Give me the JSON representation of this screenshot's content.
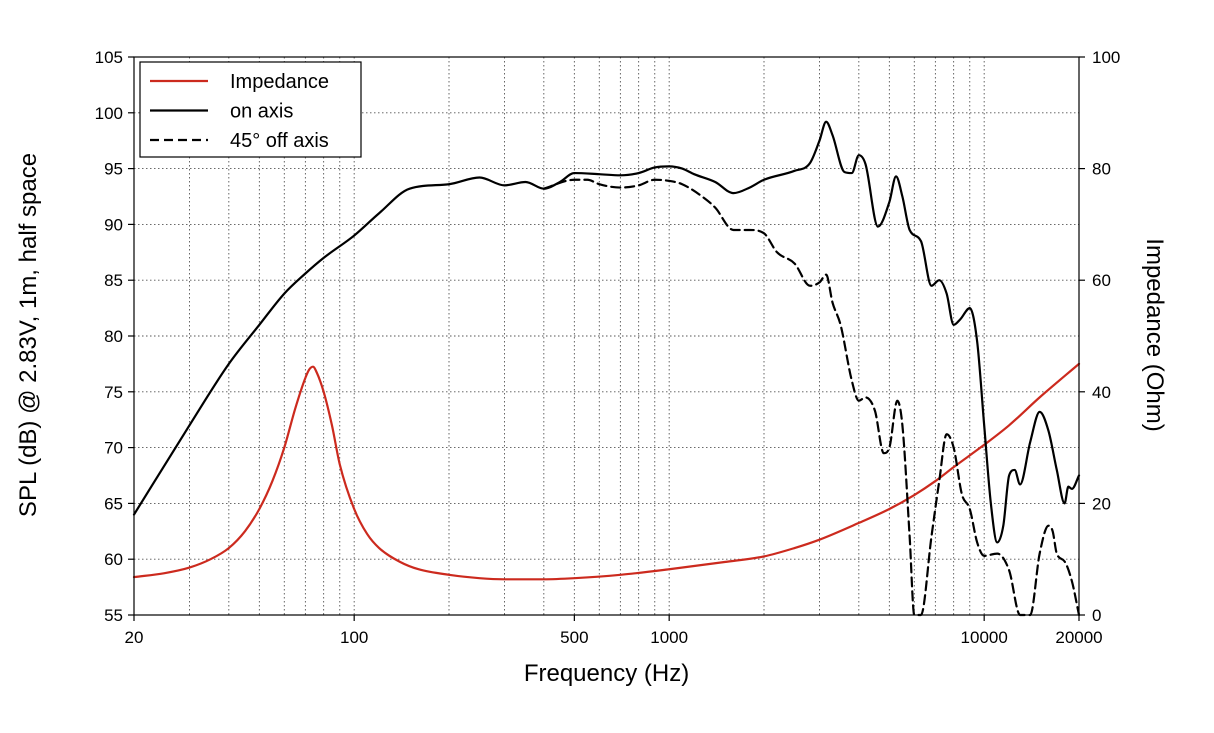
{
  "chart_data": {
    "type": "line",
    "x_scale": "log",
    "grid": true,
    "legend_position": "top-left",
    "xlabel": "Frequency (Hz)",
    "ylabel_left": "SPL (dB) @ 2.83V, 1m, half space",
    "ylabel_right": "Impedance (Ohm)",
    "xlim": [
      20,
      20000
    ],
    "ylim_left": [
      55,
      105
    ],
    "ylim_right": [
      0,
      100
    ],
    "x_tick_labels": [
      {
        "value": 20,
        "label": "20"
      },
      {
        "value": 100,
        "label": "100"
      },
      {
        "value": 500,
        "label": "500"
      },
      {
        "value": 1000,
        "label": "1000"
      },
      {
        "value": 10000,
        "label": "10000"
      },
      {
        "value": 20000,
        "label": "20000"
      }
    ],
    "y_left_ticks": [
      55,
      60,
      65,
      70,
      75,
      80,
      85,
      90,
      95,
      100,
      105
    ],
    "y_right_ticks": [
      0,
      20,
      40,
      60,
      80,
      100
    ],
    "series": [
      {
        "name": "Impedance",
        "axis": "right",
        "style": "solid",
        "color": "#cc2a1e",
        "points": [
          [
            20,
            6.8
          ],
          [
            25,
            7.5
          ],
          [
            30,
            8.5
          ],
          [
            35,
            10
          ],
          [
            40,
            12
          ],
          [
            45,
            15
          ],
          [
            50,
            19
          ],
          [
            55,
            24
          ],
          [
            60,
            30
          ],
          [
            65,
            37
          ],
          [
            70,
            42.5
          ],
          [
            72,
            44
          ],
          [
            74,
            44.5
          ],
          [
            76,
            43.5
          ],
          [
            80,
            40
          ],
          [
            85,
            34
          ],
          [
            90,
            27
          ],
          [
            100,
            19
          ],
          [
            110,
            14.5
          ],
          [
            120,
            12
          ],
          [
            140,
            9.5
          ],
          [
            160,
            8.2
          ],
          [
            200,
            7.2
          ],
          [
            250,
            6.6
          ],
          [
            300,
            6.4
          ],
          [
            400,
            6.4
          ],
          [
            500,
            6.6
          ],
          [
            700,
            7.2
          ],
          [
            1000,
            8.2
          ],
          [
            1500,
            9.5
          ],
          [
            2000,
            10.5
          ],
          [
            2500,
            12
          ],
          [
            3000,
            13.5
          ],
          [
            4000,
            16.5
          ],
          [
            5000,
            19
          ],
          [
            6000,
            21.5
          ],
          [
            7000,
            24
          ],
          [
            8000,
            26.5
          ],
          [
            10000,
            30.5
          ],
          [
            12000,
            34
          ],
          [
            15000,
            39
          ],
          [
            20000,
            45
          ]
        ]
      },
      {
        "name": "on axis",
        "axis": "left",
        "style": "solid",
        "color": "#000000",
        "points": [
          [
            20,
            64
          ],
          [
            30,
            72
          ],
          [
            40,
            77.5
          ],
          [
            50,
            81
          ],
          [
            60,
            83.8
          ],
          [
            70,
            85.6
          ],
          [
            80,
            87
          ],
          [
            100,
            89
          ],
          [
            120,
            91
          ],
          [
            150,
            93.2
          ],
          [
            200,
            93.6
          ],
          [
            250,
            94.2
          ],
          [
            300,
            93.5
          ],
          [
            350,
            93.8
          ],
          [
            400,
            93.2
          ],
          [
            450,
            93.8
          ],
          [
            500,
            94.6
          ],
          [
            600,
            94.5
          ],
          [
            700,
            94.4
          ],
          [
            800,
            94.6
          ],
          [
            900,
            95.1
          ],
          [
            1000,
            95.2
          ],
          [
            1100,
            95
          ],
          [
            1200,
            94.5
          ],
          [
            1400,
            93.8
          ],
          [
            1600,
            92.8
          ],
          [
            1800,
            93.3
          ],
          [
            2000,
            94
          ],
          [
            2500,
            94.8
          ],
          [
            2800,
            95.5
          ],
          [
            3000,
            97.5
          ],
          [
            3150,
            99.2
          ],
          [
            3300,
            98
          ],
          [
            3600,
            94.7
          ],
          [
            3800,
            94.6
          ],
          [
            4000,
            96.2
          ],
          [
            4200,
            95.4
          ],
          [
            4600,
            89.8
          ],
          [
            5000,
            92
          ],
          [
            5250,
            94.3
          ],
          [
            5500,
            92.5
          ],
          [
            5800,
            89.5
          ],
          [
            6300,
            88.5
          ],
          [
            6800,
            84.5
          ],
          [
            7200,
            85
          ],
          [
            7600,
            83.8
          ],
          [
            8000,
            81
          ],
          [
            8400,
            81.5
          ],
          [
            9000,
            82.5
          ],
          [
            9500,
            79.5
          ],
          [
            10000,
            72
          ],
          [
            10500,
            65
          ],
          [
            11000,
            61.5
          ],
          [
            11500,
            63
          ],
          [
            12000,
            67.5
          ],
          [
            12500,
            68
          ],
          [
            13000,
            66.7
          ],
          [
            14000,
            70.5
          ],
          [
            15000,
            73.2
          ],
          [
            16000,
            71.5
          ],
          [
            17000,
            68
          ],
          [
            18000,
            65
          ],
          [
            18500,
            66.5
          ],
          [
            19000,
            66.3
          ],
          [
            20000,
            67.5
          ]
        ]
      },
      {
        "name": "45° off axis",
        "axis": "left",
        "style": "dashed",
        "color": "#000000",
        "points": [
          [
            400,
            93.2
          ],
          [
            500,
            94
          ],
          [
            550,
            94
          ],
          [
            600,
            93.6
          ],
          [
            700,
            93.3
          ],
          [
            800,
            93.5
          ],
          [
            900,
            94
          ],
          [
            1000,
            93.9
          ],
          [
            1100,
            93.6
          ],
          [
            1300,
            92.3
          ],
          [
            1400,
            91.5
          ],
          [
            1600,
            89.5
          ],
          [
            1800,
            89.5
          ],
          [
            2000,
            89.2
          ],
          [
            2200,
            87.5
          ],
          [
            2500,
            86.5
          ],
          [
            2800,
            84.5
          ],
          [
            3000,
            84.8
          ],
          [
            3150,
            85.5
          ],
          [
            3300,
            83
          ],
          [
            3500,
            81
          ],
          [
            3800,
            76
          ],
          [
            4000,
            74.2
          ],
          [
            4200,
            74.5
          ],
          [
            4500,
            73.3
          ],
          [
            4800,
            69.5
          ],
          [
            5000,
            70
          ],
          [
            5300,
            74.2
          ],
          [
            5500,
            72
          ],
          [
            5800,
            62
          ],
          [
            6000,
            55
          ],
          [
            6300,
            55
          ],
          [
            6800,
            62
          ],
          [
            7200,
            67
          ],
          [
            7600,
            71.2
          ],
          [
            8000,
            70
          ],
          [
            8500,
            65.8
          ],
          [
            9000,
            64.5
          ],
          [
            9500,
            61.5
          ],
          [
            10000,
            60.3
          ],
          [
            11000,
            60.5
          ],
          [
            12000,
            59
          ],
          [
            13000,
            55
          ],
          [
            14000,
            55
          ],
          [
            15000,
            60.5
          ],
          [
            16000,
            63
          ],
          [
            16500,
            62.5
          ],
          [
            17000,
            60.5
          ],
          [
            18000,
            59.8
          ],
          [
            19000,
            58
          ],
          [
            20000,
            55
          ]
        ]
      }
    ]
  }
}
